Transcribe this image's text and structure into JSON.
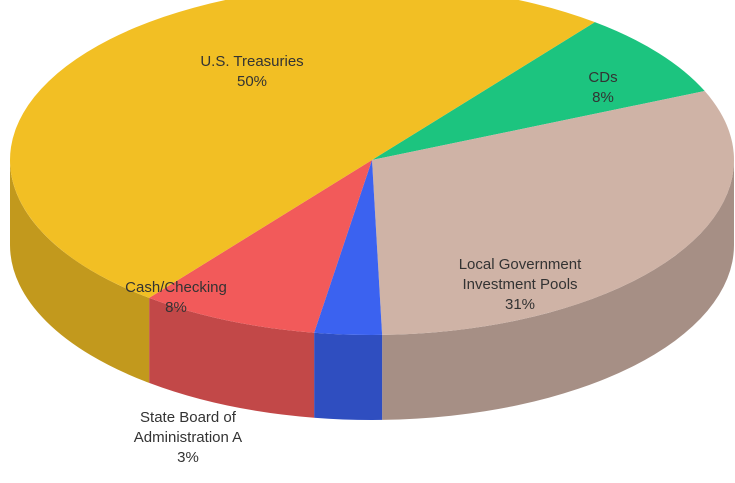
{
  "chart_data": {
    "type": "pie3d",
    "categories": [
      "CDs",
      "Local Government Investment Pools",
      "State Board of Administration A",
      "Cash/Checking",
      "U.S. Treasuries"
    ],
    "values": [
      8,
      31,
      3,
      8,
      50
    ],
    "value_labels": [
      "8%",
      "31%",
      "3%",
      "8%",
      "50%"
    ],
    "colors": [
      "#1cc47f",
      "#cfb3a6",
      "#3b62f0",
      "#f25a5a",
      "#f2bf24"
    ]
  }
}
